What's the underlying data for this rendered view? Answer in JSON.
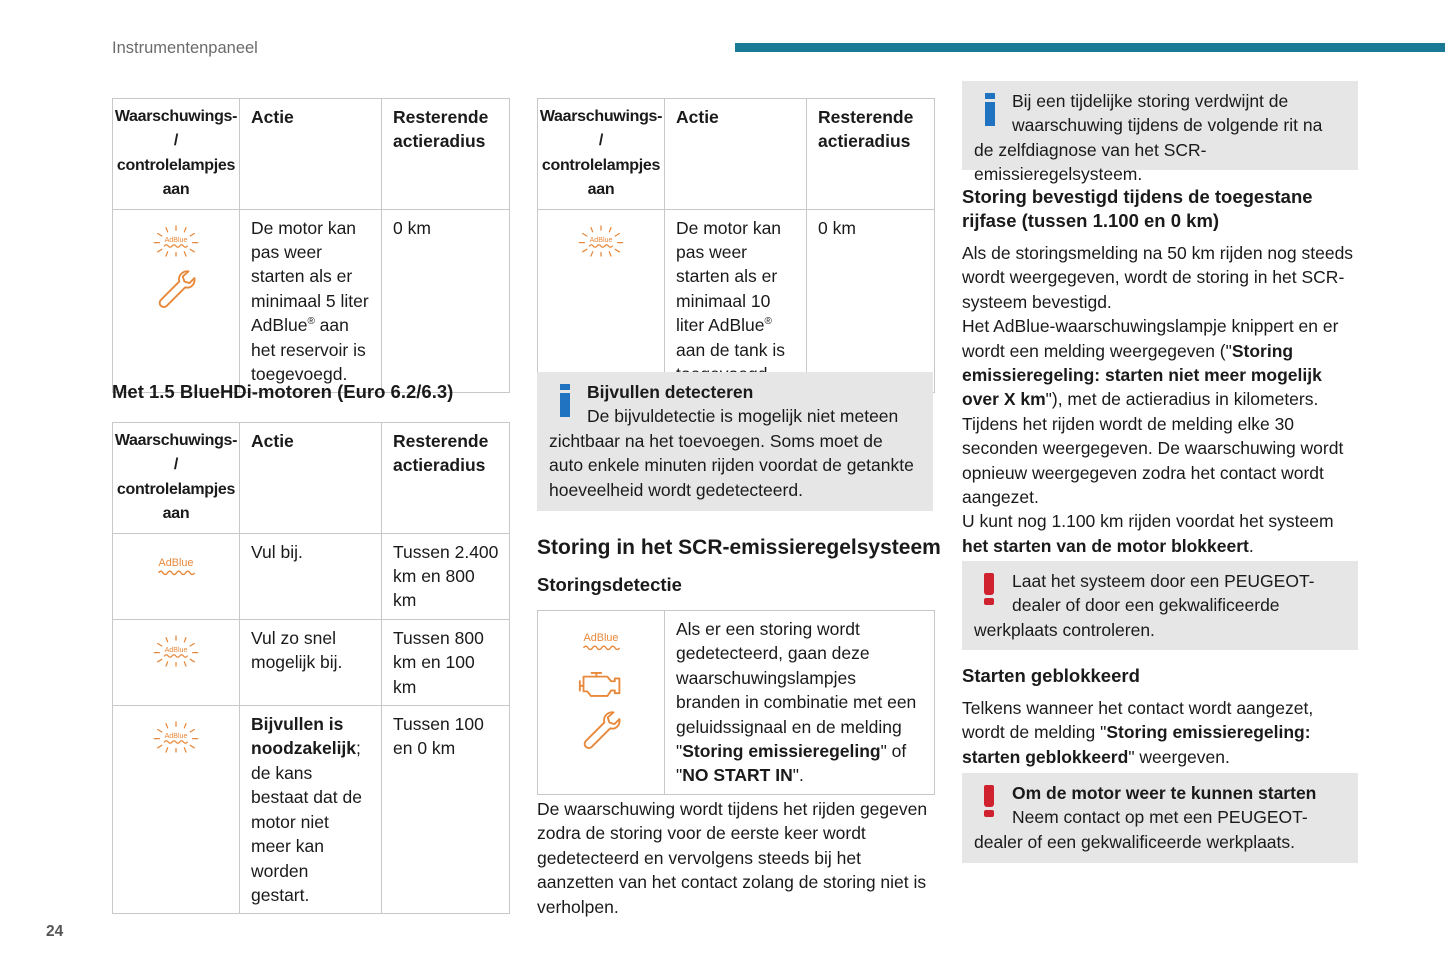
{
  "header": {
    "title": "Instrumentenpaneel",
    "accent_color": "#1a7a96"
  },
  "page_number": "24",
  "table_headers": {
    "col1": "Waarschuwings- / controlelampjes aan",
    "col2": "Actie",
    "col3": "Resterende actieradius"
  },
  "icons": {
    "adblue_label": "AdBlue",
    "adblue_color": "#e8883a"
  },
  "table1": {
    "row1": {
      "icons": [
        "adblue-blink-icon",
        "wrench-icon"
      ],
      "action_parts": [
        "De motor kan pas weer starten als er minimaal 5 liter AdBlue",
        "®",
        " aan het reservoir is toegevoegd."
      ],
      "range": "0 km"
    }
  },
  "section_euro": {
    "title": "Met 1.5 BlueHDi-motoren (Euro 6.2/6.3)"
  },
  "table2": {
    "rows": [
      {
        "icon": "adblue-icon",
        "action": "Vul bij.",
        "range": "Tussen 2.400 km en 800 km"
      },
      {
        "icon": "adblue-blink-icon",
        "action": "Vul zo snel mogelijk bij.",
        "range": "Tussen 800 km en 100 km"
      },
      {
        "icon": "adblue-blink-icon",
        "action_bold": "Bijvullen is noodzakelijk",
        "action_rest": "; de kans bestaat dat de motor niet meer kan worden gestart.",
        "range": "Tussen 100 en 0 km"
      }
    ]
  },
  "table3": {
    "row1": {
      "icons": [
        "adblue-blink-icon"
      ],
      "action_parts": [
        "De motor kan pas weer starten als er minimaal 10 liter AdBlue",
        "®",
        " aan de tank is toegevoegd."
      ],
      "range": "0 km"
    }
  },
  "note_refill": {
    "title": "Bijvullen detecteren",
    "text": "De bijvuldetectie is mogelijk niet meteen zichtbaar na het toevoegen. Soms moet de auto enkele minuten rijden voordat de getankte hoeveelheid wordt gedetecteerd."
  },
  "scr_section": {
    "title": "Storing in het SCR-emissieregelsysteem",
    "subtitle": "Storingsdetectie",
    "table_icons": [
      "adblue-icon",
      "engine-icon",
      "wrench-icon"
    ],
    "table_text_parts": [
      "Als er een storing wordt gedetecteerd, gaan deze waarschuwingslampjes branden in combinatie met een geluidssignaal en de melding \"",
      "Storing emissieregeling",
      "\" of \"",
      "NO START IN",
      "\"."
    ],
    "paragraph": "De waarschuwing wordt tijdens het rijden gegeven zodra de storing voor de eerste keer wordt gedetecteerd en vervolgens steeds bij het aanzetten van het contact zolang de storing niet is verholpen."
  },
  "note_temp": {
    "text": "Bij een tijdelijke storing verdwijnt de waarschuwing tijdens de volgende rit na de zelfdiagnose van het SCR-emissieregelsysteem."
  },
  "confirmed": {
    "title": "Storing bevestigd tijdens de toegestane rijfase (tussen 1.100 en 0 km)",
    "p1": "Als de storingsmelding na 50 km rijden nog steeds wordt weergegeven, wordt de storing in het SCR-systeem bevestigd.",
    "p2_parts": [
      "Het AdBlue-waarschuwingslampje knippert en er wordt een melding weergegeven (\"",
      "Storing emissieregeling: starten niet meer mogelijk over X km",
      "\"), met de actieradius in kilometers."
    ],
    "p3": "Tijdens het rijden wordt de melding elke 30 seconden weergegeven. De waarschuwing wordt opnieuw weergegeven zodra het contact wordt aangezet.",
    "p4_parts": [
      "U kunt nog 1.100 km rijden voordat het systeem ",
      "het starten van de motor blokkeert",
      "."
    ]
  },
  "warn_dealer": {
    "text": "Laat het systeem door een PEUGEOT-dealer of door een gekwalificeerde werkplaats controleren."
  },
  "blocked": {
    "title": "Starten geblokkeerd",
    "p_parts": [
      "Telkens wanneer het contact wordt aangezet, wordt de melding \"",
      "Storing emissieregeling: starten geblokkeerd",
      "\" weergeven."
    ]
  },
  "warn_restart": {
    "title": "Om de motor weer te kunnen starten",
    "text": "Neem contact op met een PEUGEOT-dealer of een gekwalificeerde werkplaats."
  }
}
